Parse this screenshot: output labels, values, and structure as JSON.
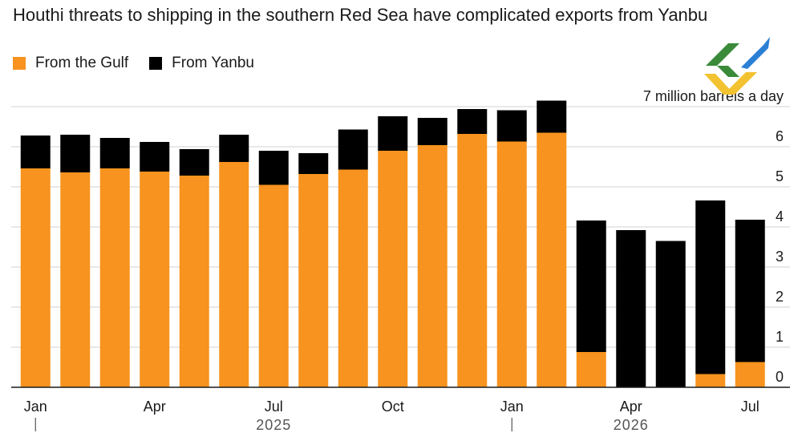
{
  "title": "Houthi threats to shipping in the southern Red Sea have complicated exports from Yanbu",
  "legend": [
    {
      "name": "From the Gulf",
      "color": "#f7931e"
    },
    {
      "name": "From Yanbu",
      "color": "#000000"
    }
  ],
  "logo": {
    "icon": "brand-logo-icon",
    "colors": [
      "#3a8a3a",
      "#2b7fd4",
      "#f2c230"
    ]
  },
  "chart_data": {
    "type": "bar",
    "stacked": true,
    "unit_label": "7 million barrels a day",
    "ylim": [
      0,
      7
    ],
    "yticks": [
      "0",
      "1",
      "2",
      "3",
      "4",
      "5",
      "6"
    ],
    "grid": true,
    "legend_position": "top-left",
    "months": [
      "Jan",
      "Feb",
      "Mar",
      "Apr",
      "May",
      "Jun",
      "Jul",
      "Aug",
      "Sep",
      "Oct",
      "Nov",
      "Dec",
      "Jan",
      "Feb",
      "Mar",
      "Apr",
      "May",
      "Jun",
      "Jul"
    ],
    "x_tick_labels": [
      {
        "index": 0,
        "label": "Jan"
      },
      {
        "index": 3,
        "label": "Apr"
      },
      {
        "index": 6,
        "label": "Jul"
      },
      {
        "index": 9,
        "label": "Oct"
      },
      {
        "index": 12,
        "label": "Jan"
      },
      {
        "index": 15,
        "label": "Apr"
      },
      {
        "index": 18,
        "label": "Jul"
      }
    ],
    "year_labels": [
      {
        "label": "2025",
        "center_index": 6
      },
      {
        "label": "2026",
        "center_index": 15
      }
    ],
    "year_separators": [
      0,
      12
    ],
    "series": [
      {
        "name": "From the Gulf",
        "color": "#f7931e",
        "values": [
          5.46,
          5.36,
          5.46,
          5.38,
          5.28,
          5.62,
          5.05,
          5.32,
          5.43,
          5.9,
          6.04,
          6.32,
          6.13,
          6.35,
          0.88,
          0,
          0,
          0.33,
          0.63
        ]
      },
      {
        "name": "From Yanbu",
        "color": "#000000",
        "values": [
          0.82,
          0.94,
          0.76,
          0.74,
          0.66,
          0.68,
          0.85,
          0.52,
          1.0,
          0.86,
          0.68,
          0.62,
          0.78,
          0.8,
          3.28,
          3.92,
          3.65,
          4.33,
          3.55
        ]
      }
    ]
  }
}
